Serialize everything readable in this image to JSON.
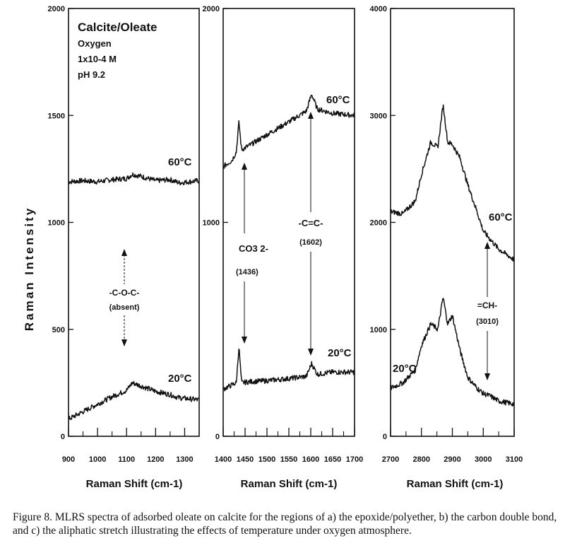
{
  "y_axis_label": "Raman Intensity",
  "caption": "Figure 8.  MLRS spectra of adsorbed oleate on calcite for the regions of a) the epoxide/polyether, b) the carbon double bond, and c) the aliphatic stretch illustrating the effects of temperature under oxygen atmosphere.",
  "chart_data": [
    {
      "type": "line",
      "panel": "a",
      "xlabel": "Raman Shift (cm-1)",
      "xlim": [
        900,
        1350
      ],
      "ylim": [
        0,
        2000
      ],
      "xticks": [
        "900",
        "1000",
        "1100",
        "1200",
        "1300"
      ],
      "yticks": [
        "0",
        "500",
        "1000",
        "1500",
        "2000"
      ],
      "annotations": {
        "title": "Calcite/Oleate",
        "conditions": [
          "Oxygen",
          "1x10-4 M",
          "pH 9.2"
        ],
        "band": "-C-O-C-",
        "band_note": "(absent)"
      },
      "series": [
        {
          "name": "60°C",
          "x": [
            900,
            950,
            1000,
            1050,
            1100,
            1120,
            1150,
            1200,
            1250,
            1280,
            1350
          ],
          "y": [
            1190,
            1195,
            1190,
            1200,
            1205,
            1225,
            1215,
            1195,
            1200,
            1185,
            1195
          ]
        },
        {
          "name": "20°C",
          "x": [
            900,
            950,
            1000,
            1050,
            1100,
            1120,
            1150,
            1200,
            1250,
            1280,
            1350
          ],
          "y": [
            80,
            115,
            150,
            185,
            215,
            250,
            235,
            210,
            195,
            180,
            170
          ]
        }
      ]
    },
    {
      "type": "line",
      "panel": "b",
      "xlabel": "Raman Shift (cm-1)",
      "xlim": [
        1400,
        1700
      ],
      "ylim": [
        0,
        2000
      ],
      "xticks": [
        "1400",
        "1450",
        "1500",
        "1550",
        "1600",
        "1650",
        "1700"
      ],
      "yticks": [
        "0",
        "1000",
        "2000"
      ],
      "annotations": {
        "peak1_label": "CO3 2-",
        "peak1_pos": "(1436)",
        "peak2_label": "-C=C-",
        "peak2_pos": "(1602)"
      },
      "series": [
        {
          "name": "60°C",
          "x": [
            1400,
            1420,
            1430,
            1436,
            1442,
            1460,
            1500,
            1550,
            1590,
            1602,
            1615,
            1650,
            1700
          ],
          "y": [
            1260,
            1290,
            1330,
            1470,
            1340,
            1360,
            1410,
            1470,
            1520,
            1600,
            1530,
            1510,
            1500
          ]
        },
        {
          "name": "20°C",
          "x": [
            1400,
            1420,
            1430,
            1436,
            1442,
            1460,
            1500,
            1550,
            1590,
            1602,
            1615,
            1650,
            1700
          ],
          "y": [
            220,
            240,
            250,
            420,
            250,
            255,
            260,
            270,
            280,
            340,
            290,
            300,
            300
          ]
        }
      ]
    },
    {
      "type": "line",
      "panel": "c",
      "xlabel": "Raman Shift (cm-1)",
      "xlim": [
        2700,
        3100
      ],
      "ylim": [
        0,
        4000
      ],
      "xticks": [
        "2700",
        "2800",
        "2900",
        "3000",
        "3100"
      ],
      "yticks": [
        "0",
        "1000",
        "2000",
        "3000",
        "4000"
      ],
      "annotations": {
        "band": "=CH-",
        "band_pos": "(3010)"
      },
      "series": [
        {
          "name": "60°C",
          "x": [
            2700,
            2740,
            2780,
            2800,
            2830,
            2853,
            2870,
            2885,
            2900,
            2925,
            2950,
            2980,
            3000,
            3020,
            3050,
            3100
          ],
          "y": [
            2100,
            2080,
            2200,
            2450,
            2750,
            2700,
            3100,
            2750,
            2730,
            2600,
            2350,
            2100,
            1920,
            1850,
            1750,
            1650
          ]
        },
        {
          "name": "20°C",
          "x": [
            2700,
            2740,
            2780,
            2800,
            2830,
            2853,
            2870,
            2885,
            2900,
            2925,
            2950,
            2980,
            3000,
            3020,
            3050,
            3100
          ],
          "y": [
            450,
            500,
            620,
            850,
            1050,
            1000,
            1300,
            1050,
            1130,
            800,
            550,
            450,
            400,
            380,
            330,
            300
          ]
        }
      ]
    }
  ]
}
